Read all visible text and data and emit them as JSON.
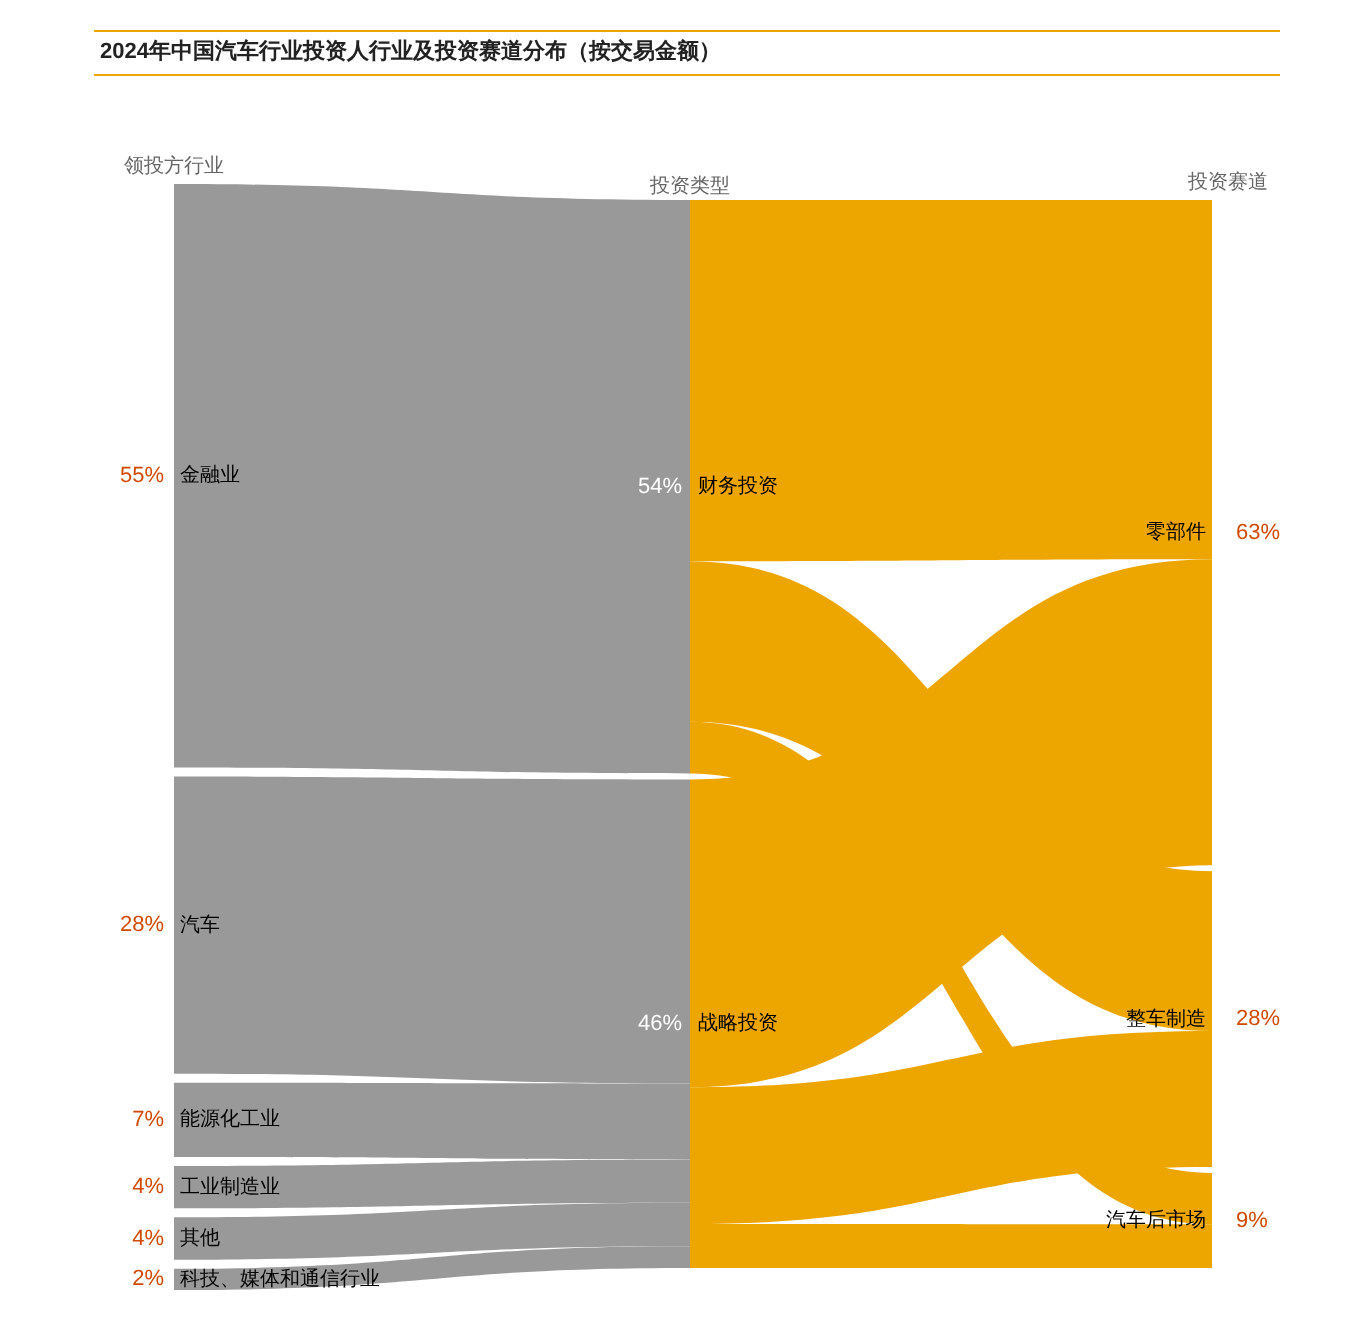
{
  "chart_data": {
    "type": "other",
    "title": "2024年中国汽车行业投资人行业及投资赛道分布（按交易金额）",
    "categories": [
      "金融业",
      "汽车",
      "能源化工业",
      "工业制造业",
      "其他",
      "科技、媒体和通信行业",
      "财务投资",
      "战略投资",
      "零部件",
      "整车制造",
      "汽车后市场"
    ],
    "colors": [
      "#999999",
      "#999999",
      "#999999",
      "#999999",
      "#999999",
      "#999999",
      "#eda500",
      "#eda500",
      null,
      null,
      null
    ],
    "series": [
      {
        "name": "领投方行业",
        "values": [
          55,
          28,
          7,
          4,
          4,
          2,
          null,
          null,
          null,
          null,
          null
        ],
        "value_labels": [
          "55%",
          "28%",
          "7%",
          "4%",
          "4%",
          "2%",
          null,
          null,
          null,
          null,
          null
        ]
      },
      {
        "name": "投资类型",
        "values": [
          null,
          null,
          null,
          null,
          null,
          null,
          54,
          46,
          null,
          null,
          null
        ],
        "value_labels": [
          null,
          null,
          null,
          null,
          null,
          null,
          "54%",
          "46%",
          null,
          null,
          null
        ]
      },
      {
        "name": "投资赛道",
        "values": [
          null,
          null,
          null,
          null,
          null,
          null,
          null,
          null,
          63,
          28,
          9
        ],
        "value_labels": [
          null,
          null,
          null,
          null,
          null,
          null,
          null,
          null,
          "63%",
          "28%",
          "9%"
        ]
      }
    ],
    "cells": [
      [
        null,
        null,
        null,
        null,
        null,
        null,
        true,
        null,
        null,
        null,
        null
      ],
      [
        null,
        null,
        null,
        null,
        null,
        null,
        null,
        true,
        null,
        null,
        null
      ],
      [
        null,
        null,
        null,
        null,
        null,
        null,
        null,
        true,
        null,
        null,
        null
      ],
      [
        null,
        null,
        null,
        null,
        null,
        null,
        null,
        true,
        null,
        null,
        null
      ],
      [
        null,
        null,
        null,
        null,
        null,
        null,
        null,
        true,
        null,
        null,
        null
      ],
      [
        null,
        null,
        null,
        null,
        null,
        null,
        null,
        true,
        null,
        null,
        null
      ],
      [
        null,
        null,
        null,
        null,
        null,
        null,
        null,
        null,
        true,
        true,
        true
      ],
      [
        null,
        null,
        null,
        null,
        null,
        null,
        null,
        null,
        true,
        true,
        true
      ],
      [
        null,
        null,
        null,
        null,
        null,
        null,
        null,
        null,
        null,
        null,
        null
      ],
      [
        null,
        null,
        null,
        null,
        null,
        null,
        null,
        null,
        null,
        null,
        null
      ],
      [
        null,
        null,
        null,
        null,
        null,
        null,
        null,
        null,
        null,
        null,
        null
      ]
    ]
  }
}
